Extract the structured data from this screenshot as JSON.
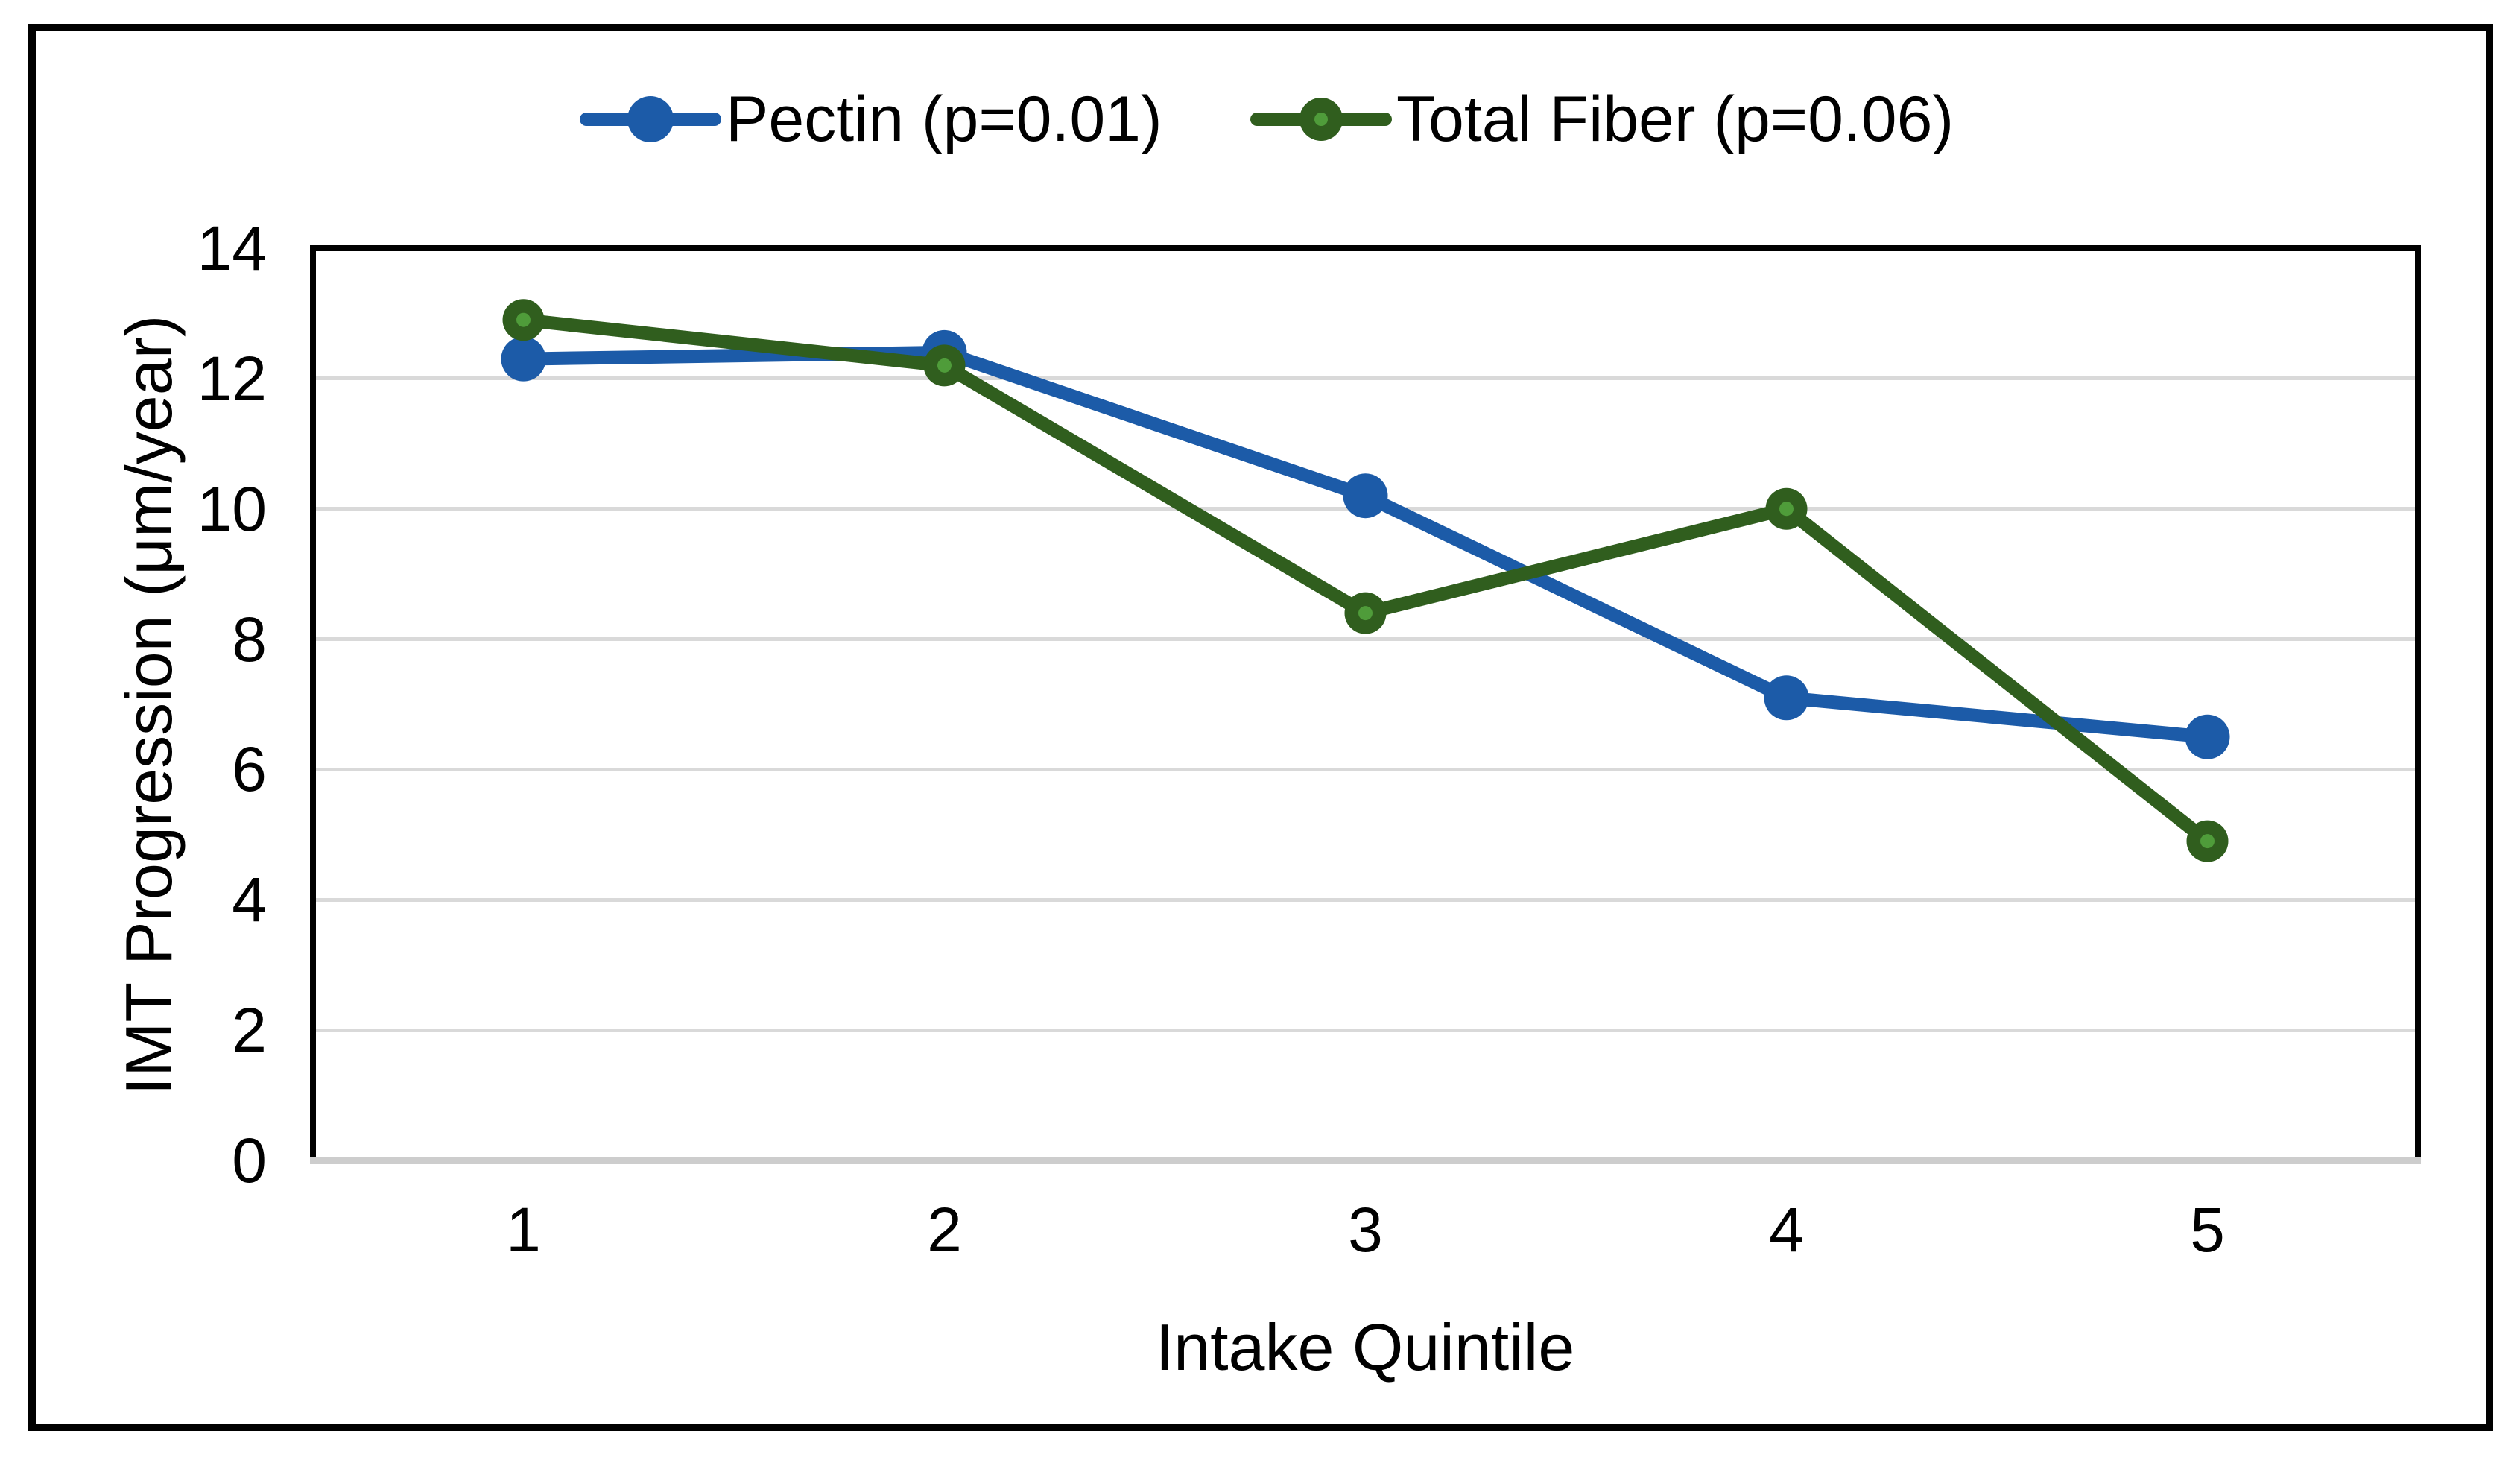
{
  "figure": {
    "background": "#FFFFFF",
    "border_color": "#000000"
  },
  "legend": {
    "position": "top-center",
    "items": [
      {
        "label": "Pectin (p=0.01)",
        "color": "#1C5BA8",
        "marker": "filled-circle-on-line"
      },
      {
        "label": "Total Fiber (p=0.06)",
        "color": "#305E1E",
        "marker": "filled-circle-on-line",
        "marker_center_color": "#4F9C3A"
      }
    ]
  },
  "chart_data": {
    "type": "line",
    "title": "",
    "categories": [
      "1",
      "2",
      "3",
      "4",
      "5"
    ],
    "series": [
      {
        "name": "Pectin (p=0.01)",
        "color": "#1C5BA8",
        "values": [
          12.3,
          12.4,
          10.2,
          7.1,
          6.5
        ]
      },
      {
        "name": "Total Fiber (p=0.06)",
        "color": "#305E1E",
        "marker_center_color": "#4F9C3A",
        "values": [
          12.9,
          12.2,
          8.4,
          10.0,
          4.9
        ]
      }
    ],
    "xlabel": "Intake Quintile",
    "ylabel": "IMT Progression (μm/year)",
    "ylim": [
      0,
      14
    ],
    "yticks": [
      0,
      2,
      4,
      6,
      8,
      10,
      12,
      14
    ],
    "grid_values": [
      2,
      4,
      6,
      8,
      10,
      12
    ],
    "grid": true,
    "gridline_color": "#D9D9D9",
    "baseline_color": "#CDCDCD",
    "axis_color": "#000000",
    "legend_position": "top"
  }
}
